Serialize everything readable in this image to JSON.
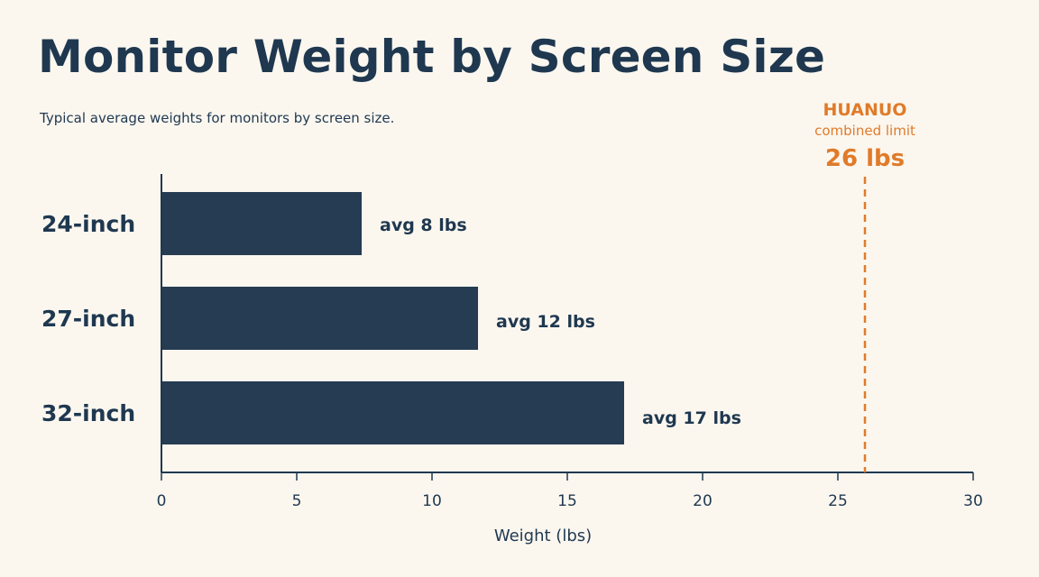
{
  "title": "Monitor Weight by Screen Size",
  "subtitle": "Typical average weights for monitors by screen size.",
  "chart_data": {
    "type": "bar",
    "orientation": "horizontal",
    "categories": [
      "24-inch",
      "27-inch",
      "32-inch"
    ],
    "values": [
      7.4,
      11.7,
      17.1
    ],
    "data_labels": [
      "avg 8 lbs",
      "avg 12 lbs",
      "avg 17 lbs"
    ],
    "xlabel": "Weight (lbs)",
    "ylabel": "",
    "xlim": [
      0,
      30
    ],
    "xticks": [
      0,
      5,
      10,
      15,
      20,
      25,
      30
    ],
    "grid": false,
    "legend": "none",
    "bar_color": "#263c52",
    "reference_line": {
      "value": 26,
      "line1": "HUANUO",
      "line2": "combined limit",
      "line3": "26 lbs",
      "color": "#e07b2a",
      "style": "dashed"
    }
  }
}
